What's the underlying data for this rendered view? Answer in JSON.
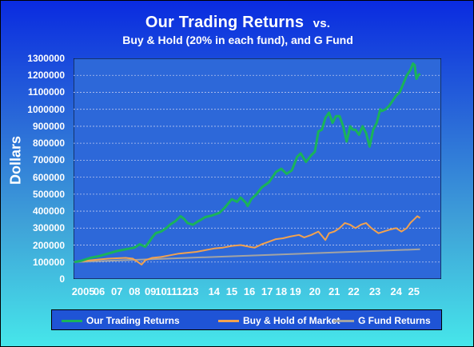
{
  "title": {
    "main": "Our Trading Returns",
    "vs": "vs.",
    "subtitle": "Buy & Hold (20% in each fund), and G Fund"
  },
  "colors": {
    "trading": "#1ab35a",
    "buyhold": "#f2a24f",
    "gfund": "#a3a3a3",
    "plot_bg": "#2d68d9"
  },
  "chart_data": {
    "type": "line",
    "title": "Our Trading Returns vs. Buy & Hold (20% in each fund), and G Fund",
    "ylabel": "Dollars",
    "xlabel": "",
    "ylim": [
      0,
      1300000
    ],
    "xlim": [
      2004.55,
      2025.35
    ],
    "y_ticks": [
      "1300000",
      "1200000",
      "1100000",
      "1000000",
      "900000",
      "800000",
      "700000",
      "600000",
      "500000",
      "400000",
      "300000",
      "200000",
      "100000",
      "0"
    ],
    "x_ticks": [
      {
        "label": "2005",
        "x": 2005.1
      },
      {
        "label": "06",
        "x": 2006.0
      },
      {
        "label": "07",
        "x": 2007.0
      },
      {
        "label": "08",
        "x": 2008.0
      },
      {
        "label": "09",
        "x": 2008.9
      },
      {
        "label": "10",
        "x": 2009.5
      },
      {
        "label": "11",
        "x": 2010.1
      },
      {
        "label": "12",
        "x": 2010.7
      },
      {
        "label": "13",
        "x": 2011.3
      },
      {
        "label": "14",
        "x": 2012.5
      },
      {
        "label": "15",
        "x": 2013.5
      },
      {
        "label": "16",
        "x": 2014.5
      },
      {
        "label": "17",
        "x": 2015.5
      },
      {
        "label": "18",
        "x": 2016.3
      },
      {
        "label": "19",
        "x": 2017.1
      },
      {
        "label": "20",
        "x": 2018.2
      },
      {
        "label": "21",
        "x": 2019.3
      },
      {
        "label": "22",
        "x": 2020.4
      },
      {
        "label": "23",
        "x": 2021.6
      },
      {
        "label": "24",
        "x": 2022.8
      },
      {
        "label": "25",
        "x": 2023.8
      }
    ],
    "grid": true,
    "legend_position": "bottom",
    "series": [
      {
        "name": "Our Trading Returns",
        "x": [
          2004.6,
          2005.0,
          2005.5,
          2006.0,
          2006.5,
          2007.0,
          2007.5,
          2008.0,
          2008.3,
          2008.6,
          2008.8,
          2009.0,
          2009.2,
          2009.5,
          2009.8,
          2010.0,
          2010.3,
          2010.6,
          2010.8,
          2011.0,
          2011.3,
          2011.6,
          2012.0,
          2012.4,
          2012.8,
          2013.1,
          2013.5,
          2013.8,
          2014.0,
          2014.3,
          2014.4,
          2014.6,
          2014.9,
          2015.2,
          2015.6,
          2016.0,
          2016.3,
          2016.6,
          2016.9,
          2017.2,
          2017.4,
          2017.7,
          2018.0,
          2018.2,
          2018.4,
          2018.6,
          2018.8,
          2019.0,
          2019.2,
          2019.4,
          2019.6,
          2019.8,
          2020.0,
          2020.2,
          2020.35,
          2020.5,
          2020.7,
          2020.9,
          2021.1,
          2021.3,
          2021.5,
          2021.7,
          2021.9,
          2022.0,
          2022.2,
          2022.4,
          2022.6,
          2022.8,
          2023.0,
          2023.2,
          2023.4,
          2023.6,
          2023.75,
          2023.85,
          2023.95,
          2024.05,
          2024.15
        ],
        "values": [
          100000,
          108000,
          125000,
          135000,
          150000,
          165000,
          175000,
          185000,
          205000,
          190000,
          215000,
          245000,
          270000,
          280000,
          300000,
          320000,
          340000,
          370000,
          355000,
          330000,
          320000,
          340000,
          365000,
          375000,
          390000,
          420000,
          470000,
          455000,
          480000,
          450000,
          430000,
          470000,
          500000,
          540000,
          570000,
          630000,
          650000,
          620000,
          640000,
          720000,
          740000,
          690000,
          730000,
          750000,
          870000,
          880000,
          950000,
          980000,
          920000,
          960000,
          960000,
          900000,
          810000,
          900000,
          880000,
          880000,
          850000,
          900000,
          860000,
          780000,
          880000,
          920000,
          1000000,
          990000,
          1000000,
          1020000,
          1050000,
          1080000,
          1100000,
          1150000,
          1200000,
          1230000,
          1270000,
          1260000,
          1180000,
          1200000,
          1210000
        ]
      },
      {
        "name": "Buy & Hold of Market",
        "x": [
          2004.6,
          2005.5,
          2006.5,
          2007.5,
          2007.9,
          2008.2,
          2008.4,
          2008.6,
          2009.0,
          2009.5,
          2010.0,
          2010.5,
          2011.0,
          2011.5,
          2012.0,
          2012.5,
          2013.0,
          2013.5,
          2014.0,
          2014.5,
          2014.8,
          2015.2,
          2015.6,
          2016.0,
          2016.4,
          2016.8,
          2017.3,
          2017.6,
          2018.0,
          2018.4,
          2018.8,
          2019.0,
          2019.3,
          2019.6,
          2019.9,
          2020.2,
          2020.5,
          2020.8,
          2021.1,
          2021.4,
          2021.8,
          2022.1,
          2022.4,
          2022.8,
          2023.1,
          2023.4,
          2023.6,
          2023.8,
          2024.0,
          2024.15
        ],
        "values": [
          100000,
          110000,
          120000,
          125000,
          120000,
          100000,
          85000,
          110000,
          125000,
          130000,
          140000,
          150000,
          155000,
          160000,
          170000,
          180000,
          185000,
          195000,
          200000,
          190000,
          185000,
          205000,
          220000,
          235000,
          240000,
          250000,
          260000,
          245000,
          260000,
          280000,
          230000,
          270000,
          280000,
          300000,
          330000,
          320000,
          300000,
          320000,
          330000,
          300000,
          270000,
          280000,
          290000,
          300000,
          280000,
          300000,
          330000,
          350000,
          370000,
          360000
        ]
      },
      {
        "name": "G Fund Returns",
        "x": [
          2004.6,
          2024.15
        ],
        "values": [
          100000,
          175000
        ]
      }
    ]
  }
}
